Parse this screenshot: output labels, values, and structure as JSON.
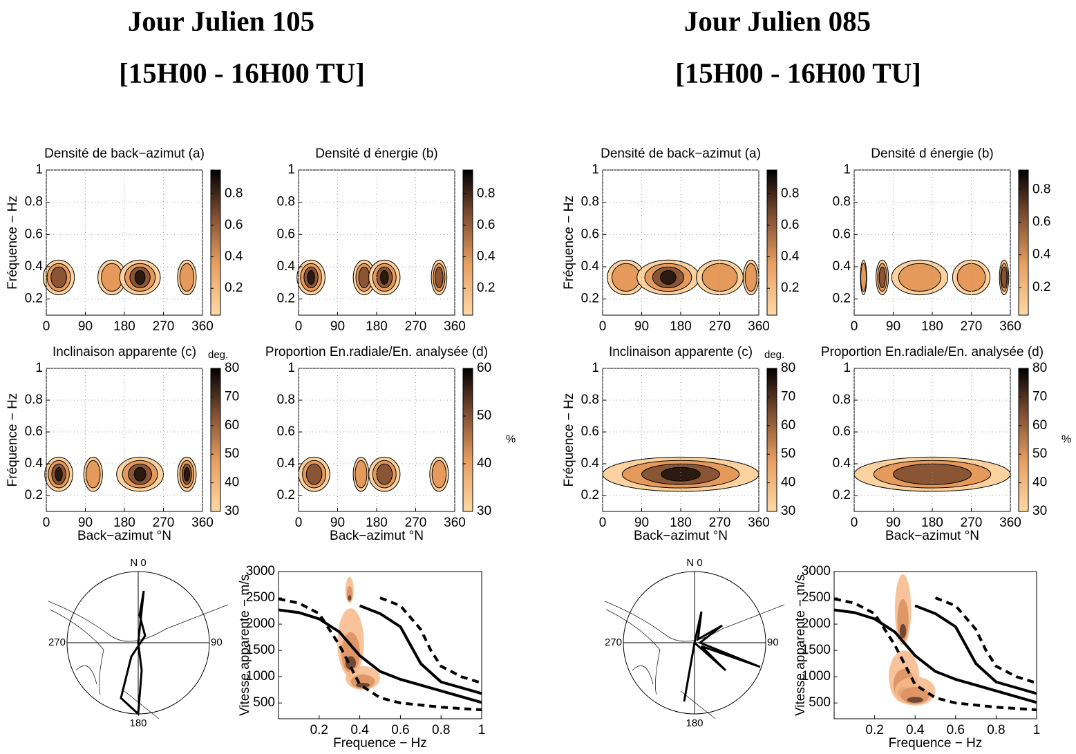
{
  "headings": [
    {
      "title": "Jour Julien 105",
      "subtitle": "[15H00 - 16H00 TU]"
    },
    {
      "title": "Jour Julien 085",
      "subtitle": "[15H00 - 16H00 TU]"
    }
  ],
  "chart_data": [
    {
      "type": "contour",
      "title": "Densité de back−azimut (a)",
      "y_label": "Fréquence − Hz",
      "xlim": [
        0,
        360
      ],
      "xticks": [
        0,
        90,
        180,
        270,
        360
      ],
      "ylim": [
        0.1,
        1
      ],
      "yticks": [
        0.2,
        0.4,
        0.6,
        0.8,
        1
      ],
      "grid": true,
      "colorbar": {
        "lim": [
          0.03,
          0.95
        ],
        "ticks": [
          0.2,
          0.4,
          0.6,
          0.8
        ]
      }
    },
    {
      "type": "contour",
      "title": "Densité d énergie (b)",
      "xlim": [
        0,
        360
      ],
      "xticks": [
        0,
        90,
        180,
        270,
        360
      ],
      "ylim": [
        0.1,
        1
      ],
      "yticks": [
        0.2,
        0.4,
        0.6,
        0.8,
        1
      ],
      "grid": true,
      "colorbar": {
        "lim": [
          0.03,
          0.95
        ],
        "ticks": [
          0.2,
          0.4,
          0.6,
          0.8
        ]
      }
    },
    {
      "type": "contour",
      "title": "Inclinaison apparente (c)",
      "y_label": "Fréquence − Hz",
      "x_label": "Back−azimut °N",
      "xlim": [
        0,
        360
      ],
      "xticks": [
        0,
        90,
        180,
        270,
        360
      ],
      "ylim": [
        0.1,
        1
      ],
      "yticks": [
        0.2,
        0.4,
        0.6,
        0.8,
        1
      ],
      "grid": true,
      "colorbar": {
        "lim": [
          30,
          80
        ],
        "ticks": [
          30,
          40,
          50,
          60,
          70,
          80
        ],
        "label": "deg."
      }
    },
    {
      "type": "contour",
      "title": "Proportion En.radiale/En. analysée (d)",
      "x_label": "Back−azimut °N",
      "xlim": [
        0,
        360
      ],
      "xticks": [
        0,
        90,
        180,
        270,
        360
      ],
      "ylim": [
        0.1,
        1
      ],
      "yticks": [
        0.2,
        0.4,
        0.6,
        0.8,
        1
      ],
      "grid": true,
      "colorbar": {
        "lim": [
          30,
          60
        ],
        "ticks": [
          30,
          40,
          50,
          60
        ],
        "label": "%"
      }
    },
    {
      "type": "polar",
      "labels": [
        "N 0",
        "90",
        "180",
        "270"
      ]
    },
    {
      "type": "density",
      "x_label": "Frequence − Hz",
      "y_label": "Vitesse apparente − m/s",
      "xlim": [
        0,
        1
      ],
      "xticks": [
        0.2,
        0.4,
        0.6,
        0.8,
        1
      ],
      "ylim": [
        200,
        3000
      ],
      "yticks": [
        500,
        1000,
        1500,
        2000,
        2500,
        3000
      ],
      "series": [
        {
          "style": "dashed",
          "x": [
            0,
            0.1,
            0.2,
            0.3,
            0.4,
            0.5,
            0.6,
            0.8,
            1
          ],
          "values": [
            2480,
            2400,
            2200,
            1600,
            850,
            600,
            500,
            420,
            370
          ]
        },
        {
          "style": "solid",
          "x": [
            0,
            0.1,
            0.2,
            0.3,
            0.4,
            0.5,
            0.6,
            0.8,
            1
          ],
          "values": [
            2270,
            2220,
            2100,
            1850,
            1400,
            1100,
            950,
            730,
            510
          ]
        },
        {
          "style": "solid",
          "x": [
            0.4,
            0.5,
            0.6,
            0.65,
            0.7,
            0.8,
            1
          ],
          "values": [
            2350,
            2200,
            1950,
            1600,
            1250,
            900,
            680
          ]
        },
        {
          "style": "dashed",
          "x": [
            0.5,
            0.6,
            0.7,
            0.75,
            0.8,
            0.9,
            1
          ],
          "values": [
            2500,
            2350,
            1900,
            1500,
            1200,
            1000,
            880
          ]
        }
      ]
    },
    {
      "type": "contour",
      "title": "Densité de back−azimut (a)",
      "y_label": "Fréquence − Hz",
      "xlim": [
        0,
        360
      ],
      "xticks": [
        0,
        90,
        180,
        270,
        360
      ],
      "ylim": [
        0.1,
        1
      ],
      "yticks": [
        0.2,
        0.4,
        0.6,
        0.8,
        1
      ],
      "grid": true,
      "colorbar": {
        "lim": [
          0.03,
          0.95
        ],
        "ticks": [
          0.2,
          0.4,
          0.6,
          0.8
        ]
      }
    },
    {
      "type": "contour",
      "title": "Densité d énergie (b)",
      "xlim": [
        0,
        360
      ],
      "xticks": [
        0,
        90,
        180,
        270,
        360
      ],
      "ylim": [
        0.1,
        1
      ],
      "yticks": [
        0.2,
        0.4,
        0.6,
        0.8,
        1
      ],
      "grid": true,
      "colorbar": {
        "lim": [
          0.03,
          0.92
        ],
        "ticks": [
          0.2,
          0.4,
          0.6,
          0.8
        ]
      }
    },
    {
      "type": "contour",
      "title": "Inclinaison apparente (c)",
      "y_label": "Fréquence − Hz",
      "x_label": "Back−azimut °N",
      "xlim": [
        0,
        360
      ],
      "xticks": [
        0,
        90,
        180,
        270,
        360
      ],
      "ylim": [
        0.1,
        1
      ],
      "yticks": [
        0.2,
        0.4,
        0.6,
        0.8,
        1
      ],
      "grid": true,
      "colorbar": {
        "lim": [
          30,
          80
        ],
        "ticks": [
          30,
          40,
          50,
          60,
          70,
          80
        ],
        "label": "deg."
      }
    },
    {
      "type": "contour",
      "title": "Proportion En.radiale/En. analysée (d)",
      "x_label": "Back−azimut °N",
      "xlim": [
        0,
        360
      ],
      "xticks": [
        0,
        90,
        180,
        270,
        360
      ],
      "ylim": [
        0.1,
        1
      ],
      "yticks": [
        0.2,
        0.4,
        0.6,
        0.8,
        1
      ],
      "grid": true,
      "colorbar": {
        "lim": [
          30,
          80
        ],
        "ticks": [
          30,
          40,
          50,
          60,
          70,
          80
        ],
        "label": "%"
      }
    },
    {
      "type": "polar",
      "labels": [
        "N 0",
        "90",
        "180",
        "270"
      ]
    },
    {
      "type": "density",
      "x_label": "Frequence − Hz",
      "y_label": "Vitesse apparente − m/s",
      "xlim": [
        0,
        1
      ],
      "xticks": [
        0.2,
        0.4,
        0.6,
        0.8,
        1
      ],
      "ylim": [
        200,
        3000
      ],
      "yticks": [
        500,
        1000,
        1500,
        2000,
        2500,
        3000
      ],
      "series": [
        {
          "style": "dashed",
          "x": [
            0,
            0.1,
            0.2,
            0.3,
            0.4,
            0.5,
            0.6,
            0.8,
            1
          ],
          "values": [
            2480,
            2400,
            2200,
            1600,
            850,
            600,
            500,
            420,
            370
          ]
        },
        {
          "style": "solid",
          "x": [
            0,
            0.1,
            0.2,
            0.3,
            0.4,
            0.5,
            0.6,
            0.8,
            1
          ],
          "values": [
            2270,
            2220,
            2100,
            1850,
            1400,
            1100,
            950,
            730,
            510
          ]
        },
        {
          "style": "solid",
          "x": [
            0.4,
            0.5,
            0.6,
            0.65,
            0.7,
            0.8,
            1
          ],
          "values": [
            2350,
            2200,
            1950,
            1600,
            1250,
            900,
            680
          ]
        },
        {
          "style": "dashed",
          "x": [
            0.5,
            0.6,
            0.7,
            0.75,
            0.8,
            0.9,
            1
          ],
          "values": [
            2500,
            2350,
            1900,
            1500,
            1200,
            1000,
            880
          ]
        }
      ]
    }
  ]
}
